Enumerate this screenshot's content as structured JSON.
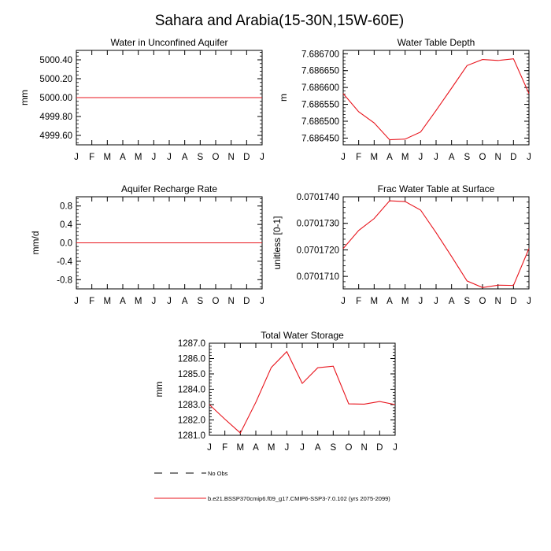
{
  "figure": {
    "title": "Sahara and Arabia(15-30N,15W-60E)"
  },
  "chart_data": [
    {
      "id": "water-in-unconfined-aquifer",
      "type": "line",
      "title": "Water in Unconfined Aquifer",
      "ylabel": "mm",
      "xlabel": "",
      "categories": [
        "J",
        "F",
        "M",
        "A",
        "M",
        "J",
        "J",
        "A",
        "S",
        "O",
        "N",
        "D",
        "J"
      ],
      "ylim": [
        4999.5,
        5000.5
      ],
      "yticks": [
        4999.6,
        4999.8,
        5000.0,
        5000.2,
        5000.4
      ],
      "ytick_labels": [
        "4999.60",
        "4999.80",
        "5000.00",
        "5000.20",
        "5000.40"
      ],
      "series": [
        {
          "color": "#e8141c",
          "values": [
            5000,
            5000,
            5000,
            5000,
            5000,
            5000,
            5000,
            5000,
            5000,
            5000,
            5000,
            5000,
            5000
          ]
        }
      ]
    },
    {
      "id": "water-table-depth",
      "type": "line",
      "title": "Water Table Depth",
      "ylabel": "m",
      "xlabel": "",
      "categories": [
        "J",
        "F",
        "M",
        "A",
        "M",
        "J",
        "J",
        "A",
        "S",
        "O",
        "N",
        "D",
        "J"
      ],
      "ylim": [
        7.68643,
        7.68671
      ],
      "yticks": [
        7.68645,
        7.6865,
        7.68655,
        7.6866,
        7.68665,
        7.6867
      ],
      "ytick_labels": [
        "7.686450",
        "7.686500",
        "7.686550",
        "7.686600",
        "7.686650",
        "7.686700"
      ],
      "series": [
        {
          "color": "#e8141c",
          "values": [
            7.686582,
            7.686528,
            7.686495,
            7.686445,
            7.686447,
            7.686468,
            7.686532,
            7.686598,
            7.686665,
            7.686683,
            7.68668,
            7.686685,
            7.686582
          ]
        }
      ]
    },
    {
      "id": "aquifer-recharge-rate",
      "type": "line",
      "title": "Aquifer Recharge Rate",
      "ylabel": "mm/d",
      "xlabel": "",
      "categories": [
        "J",
        "F",
        "M",
        "A",
        "M",
        "J",
        "J",
        "A",
        "S",
        "O",
        "N",
        "D",
        "J"
      ],
      "ylim": [
        -1.0,
        1.0
      ],
      "yticks": [
        -0.8,
        -0.4,
        0.0,
        0.4,
        0.8
      ],
      "ytick_labels": [
        "-0.8",
        "-0.4",
        "0.0",
        "0.4",
        "0.8"
      ],
      "series": [
        {
          "color": "#e8141c",
          "values": [
            0,
            0,
            0,
            0,
            0,
            0,
            0,
            0,
            0,
            0,
            0,
            0,
            0
          ]
        }
      ]
    },
    {
      "id": "frac-water-table-at-surface",
      "type": "line",
      "title": "Frac Water Table at Surface",
      "ylabel": "unitless [0-1]",
      "xlabel": "",
      "categories": [
        "J",
        "F",
        "M",
        "A",
        "M",
        "J",
        "J",
        "A",
        "S",
        "O",
        "N",
        "D",
        "J"
      ],
      "ylim": [
        0.07017053,
        0.070174
      ],
      "yticks": [
        0.070171,
        0.070172,
        0.070173,
        0.070174
      ],
      "ytick_labels": [
        "0.0701710",
        "0.0701720",
        "0.0701730",
        "0.0701740"
      ],
      "series": [
        {
          "color": "#e8141c",
          "values": [
            0.07017205,
            0.07017273,
            0.07017318,
            0.07017385,
            0.07017382,
            0.0701735,
            0.07017265,
            0.07017175,
            0.07017083,
            0.07017058,
            0.07017067,
            0.07017066,
            0.07017205
          ]
        }
      ]
    },
    {
      "id": "total-water-storage",
      "type": "line",
      "title": "Total Water Storage",
      "ylabel": "mm",
      "xlabel": "",
      "categories": [
        "J",
        "F",
        "M",
        "A",
        "M",
        "J",
        "J",
        "A",
        "S",
        "O",
        "N",
        "D",
        "J"
      ],
      "ylim": [
        1281.0,
        1287.0
      ],
      "yticks": [
        1281.0,
        1282.0,
        1283.0,
        1284.0,
        1285.0,
        1286.0,
        1287.0
      ],
      "ytick_labels": [
        "1281.0",
        "1282.0",
        "1283.0",
        "1284.0",
        "1285.0",
        "1286.0",
        "1287.0"
      ],
      "series": [
        {
          "color": "#e8141c",
          "values": [
            1283.0,
            1282.05,
            1281.15,
            1283.15,
            1285.42,
            1286.45,
            1284.38,
            1285.4,
            1285.5,
            1283.05,
            1283.03,
            1283.2,
            1283.0
          ]
        }
      ]
    }
  ],
  "legend": {
    "items": [
      {
        "label": "No Obs",
        "style": "dashed",
        "color": "#000000"
      },
      {
        "label": "b.e21.BSSP370cmip6.f09_g17.CMIP6-SSP3-7.0.102 (yrs 2075-2099)",
        "style": "solid",
        "color": "#e8141c"
      }
    ]
  }
}
